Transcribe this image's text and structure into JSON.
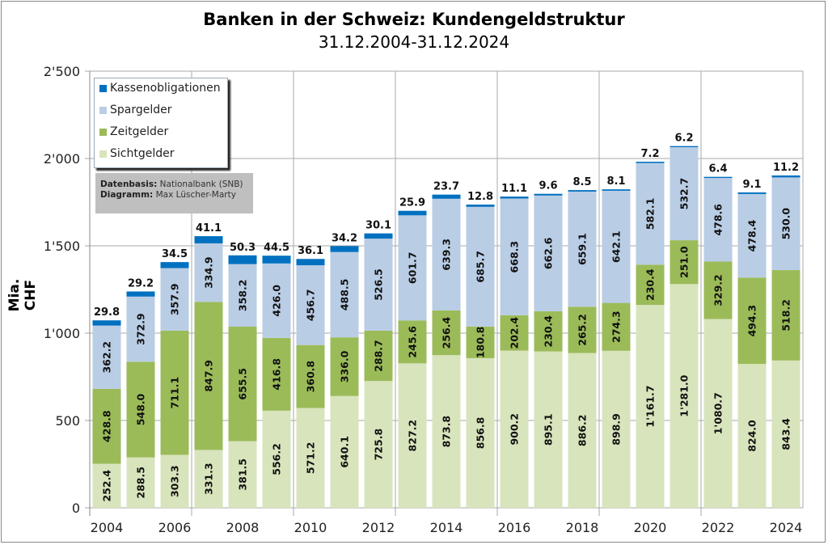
{
  "chart_data": {
    "type": "bar",
    "stacked": true,
    "title": "Banken in der Schweiz: Kundengeldstruktur",
    "subtitle": "31.12.2004-31.12.2024",
    "ylabel": "Mia. CHF",
    "ylim": [
      0,
      2500
    ],
    "yticks": [
      0,
      500,
      1000,
      1500,
      2000,
      2500
    ],
    "ytick_labels": [
      "0",
      "500",
      "1'000",
      "1'500",
      "2'000",
      "2'500"
    ],
    "categories": [
      2004,
      2005,
      2006,
      2007,
      2008,
      2009,
      2010,
      2011,
      2012,
      2013,
      2014,
      2015,
      2016,
      2017,
      2018,
      2019,
      2020,
      2021,
      2022,
      2023,
      2024
    ],
    "xtick_labels": [
      "2004",
      "2006",
      "2008",
      "2010",
      "2012",
      "2014",
      "2016",
      "2018",
      "2020",
      "2022",
      "2024"
    ],
    "grid": true,
    "legend_position": "top-left",
    "series": [
      {
        "name": "Sichtgelder",
        "color": "#d8e4bc",
        "values": [
          252.4,
          288.5,
          303.3,
          331.3,
          381.5,
          556.2,
          571.2,
          640.1,
          725.8,
          827.2,
          873.8,
          856.8,
          900.2,
          895.1,
          886.2,
          898.9,
          1161.7,
          1281.0,
          1080.7,
          824.0,
          843.4
        ]
      },
      {
        "name": "Zeitgelder",
        "color": "#9bbb59",
        "values": [
          428.8,
          548.0,
          711.1,
          847.9,
          655.5,
          416.8,
          360.8,
          336.0,
          288.7,
          245.6,
          256.4,
          180.8,
          202.4,
          230.4,
          265.2,
          274.3,
          230.4,
          251.0,
          329.2,
          494.3,
          518.2
        ]
      },
      {
        "name": "Spargelder",
        "color": "#b9cde5",
        "values": [
          362.2,
          372.9,
          357.9,
          334.9,
          358.2,
          426.0,
          456.7,
          488.5,
          526.5,
          601.7,
          639.3,
          685.7,
          668.3,
          662.6,
          659.1,
          642.1,
          582.1,
          532.7,
          478.6,
          478.4,
          530.0
        ]
      },
      {
        "name": "Kassenobligationen",
        "color": "#0070c0",
        "values": [
          29.8,
          29.2,
          34.5,
          41.1,
          50.3,
          44.5,
          36.1,
          34.2,
          30.1,
          25.9,
          23.7,
          12.8,
          11.1,
          9.6,
          8.5,
          8.1,
          7.2,
          6.2,
          6.4,
          9.1,
          11.2
        ]
      }
    ]
  },
  "legend": {
    "items": [
      {
        "label": "Kassenobligationen",
        "color": "#0070c0"
      },
      {
        "label": "Spargelder",
        "color": "#b9cde5"
      },
      {
        "label": "Zeitgelder",
        "color": "#9bbb59"
      },
      {
        "label": "Sichtgelder",
        "color": "#d8e4bc"
      }
    ]
  },
  "note": {
    "source_label": "Datenbasis:",
    "source_value": "Nationalbank (SNB)",
    "author_label": "Diagramm:",
    "author_value": "Max Lüscher-Marty"
  }
}
